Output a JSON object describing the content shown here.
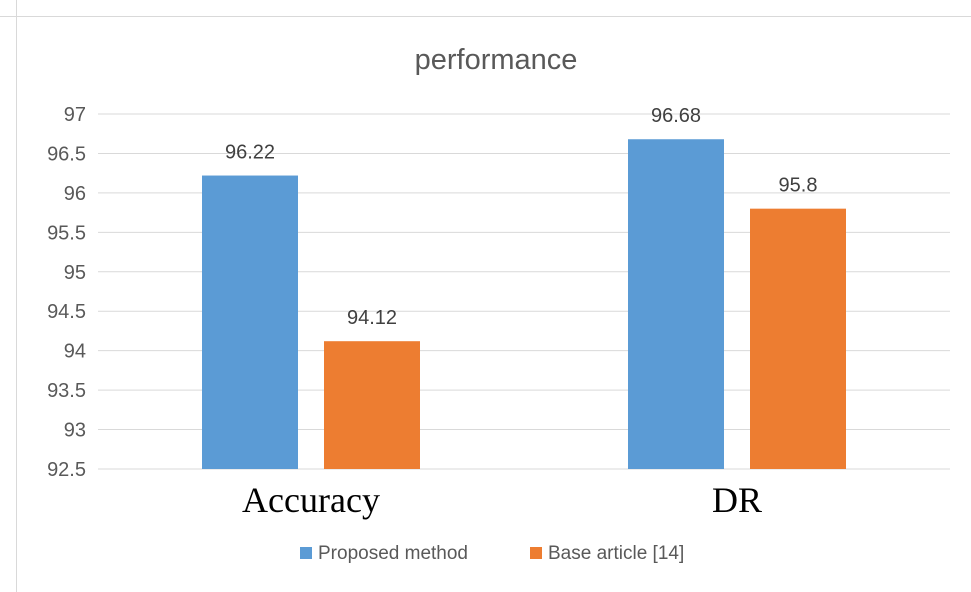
{
  "chart_data": {
    "type": "bar",
    "title": "performance",
    "categories": [
      "Accuracy",
      "DR"
    ],
    "series": [
      {
        "name": "Proposed method",
        "values": [
          96.22,
          96.68
        ],
        "color": "#5B9BD5"
      },
      {
        "name": "Base article [14]",
        "values": [
          94.12,
          95.8
        ],
        "color": "#ED7D31"
      }
    ],
    "ylim": [
      92.5,
      97
    ],
    "yticks": [
      "92.5",
      "93",
      "93.5",
      "94",
      "94.5",
      "95",
      "95.5",
      "96",
      "96.5",
      "97"
    ],
    "xlabel": "",
    "ylabel": "",
    "grid": true,
    "legend_position": "bottom"
  }
}
